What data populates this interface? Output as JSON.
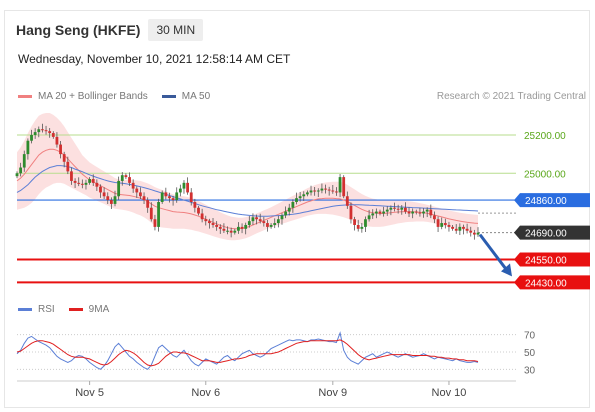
{
  "header": {
    "instrument": "Hang Seng (HKFE)",
    "timeframe": "30 MIN",
    "datetime": "Wednesday, November 10, 2021 12:58:14 AM CET"
  },
  "legend": {
    "ma20_bb": {
      "label": "MA 20 + Bollinger Bands",
      "color": "#f08080"
    },
    "ma50": {
      "label": "MA 50",
      "color": "#3a5a9a"
    },
    "credit": "Research © 2021 Trading Central"
  },
  "rsi_legend": {
    "rsi": {
      "label": "RSI",
      "color": "#5b7fd6"
    },
    "ma9": {
      "label": "9MA",
      "color": "#e02020"
    }
  },
  "chart_data": {
    "type": "candlestick",
    "price_range": [
      24430,
      25300
    ],
    "x_ticks": [
      {
        "label": "Nov 5",
        "index": 20
      },
      {
        "label": "Nov 6",
        "index": 52
      },
      {
        "label": "Nov 9",
        "index": 87
      },
      {
        "label": "Nov 10",
        "index": 119
      }
    ],
    "levels": [
      {
        "label": "25200.00",
        "value": 25200,
        "kind": "resistance_minor",
        "color": "#7dc13c"
      },
      {
        "label": "25000.00",
        "value": 25000,
        "kind": "resistance_minor",
        "color": "#7dc13c"
      },
      {
        "label": "24860.00",
        "value": 24860,
        "kind": "pivot",
        "color": "#2a6de0"
      },
      {
        "label": "24690.00",
        "value": 24690,
        "kind": "last_price",
        "color": "#333333"
      },
      {
        "label": "24550.00",
        "value": 24550,
        "kind": "support",
        "color": "#e81010"
      },
      {
        "label": "24430.00",
        "value": 24430,
        "kind": "support",
        "color": "#e81010"
      }
    ],
    "candles": {
      "count": 128,
      "close": [
        25000,
        25030,
        25100,
        25170,
        25200,
        25215,
        25230,
        25225,
        25220,
        25210,
        25190,
        25150,
        25100,
        25060,
        25010,
        24960,
        24950,
        24945,
        24940,
        24950,
        24970,
        24950,
        24930,
        24900,
        24880,
        24860,
        24840,
        24880,
        24960,
        24990,
        24980,
        24950,
        24920,
        24900,
        24880,
        24860,
        24820,
        24760,
        24720,
        24850,
        24900,
        24880,
        24870,
        24860,
        24900,
        24920,
        24950,
        24900,
        24850,
        24820,
        24790,
        24760,
        24750,
        24740,
        24730,
        24720,
        24710,
        24700,
        24700,
        24690,
        24700,
        24720,
        24710,
        24730,
        24750,
        24770,
        24760,
        24750,
        24740,
        24720,
        24730,
        24740,
        24760,
        24780,
        24800,
        24820,
        24850,
        24870,
        24880,
        24890,
        24900,
        24910,
        24905,
        24910,
        24920,
        24915,
        24910,
        24905,
        24900,
        24980,
        24880,
        24830,
        24760,
        24730,
        24710,
        24720,
        24760,
        24780,
        24790,
        24800,
        24790,
        24800,
        24810,
        24820,
        24815,
        24810,
        24820,
        24800,
        24790,
        24800,
        24795,
        24790,
        24800,
        24810,
        24780,
        24760,
        24720,
        24740,
        24730,
        24720,
        24710,
        24700,
        24720,
        24710,
        24700,
        24690,
        24680,
        24690
      ],
      "high_offset": 25,
      "low_offset": 25
    },
    "ma20": [
      24960,
      24975,
      24995,
      25020,
      25045,
      25070,
      25095,
      25110,
      25120,
      25125,
      25125,
      25120,
      25110,
      25095,
      25075,
      25055,
      25035,
      25015,
      24995,
      24980,
      24965,
      24955,
      24945,
      24935,
      24925,
      24915,
      24905,
      24895,
      24890,
      24888,
      24886,
      24884,
      24880,
      24875,
      24870,
      24862,
      24852,
      24840,
      24828,
      24820,
      24815,
      24810,
      24805,
      24800,
      24798,
      24796,
      24795,
      24792,
      24788,
      24782,
      24776,
      24768,
      24760,
      24752,
      24744,
      24736,
      24728,
      24722,
      24716,
      24712,
      24710,
      24710,
      24712,
      24716,
      24722,
      24730,
      24738,
      24746,
      24754,
      24762,
      24770,
      24778,
      24786,
      24794,
      24802,
      24810,
      24818,
      24826,
      24834,
      24842,
      24850,
      24856,
      24862,
      24866,
      24868,
      24870,
      24870,
      24870,
      24868,
      24866,
      24860,
      24852,
      24842,
      24832,
      24822,
      24812,
      24804,
      24798,
      24794,
      24792,
      24790,
      24790,
      24792,
      24794,
      24796,
      24798,
      24799,
      24800,
      24800,
      24799,
      24798,
      24796,
      24794,
      24791,
      24787,
      24782,
      24777,
      24772,
      24767,
      24762,
      24758,
      24754,
      24750,
      24747,
      24744,
      24742,
      24740,
      24738
    ],
    "ma50": [
      24900,
      24910,
      24925,
      24940,
      24960,
      24980,
      24995,
      25010,
      25020,
      25030,
      25035,
      25040,
      25040,
      25038,
      25035,
      25030,
      25022,
      25015,
      25008,
      25000,
      24992,
      24985,
      24978,
      24972,
      24966,
      24960,
      24956,
      24952,
      24950,
      24948,
      24945,
      24942,
      24938,
      24934,
      24930,
      24925,
      24920,
      24914,
      24908,
      24902,
      24896,
      24890,
      24884,
      24878,
      24872,
      24866,
      24860,
      24854,
      24848,
      24842,
      24836,
      24830,
      24825,
      24820,
      24815,
      24810,
      24806,
      24802,
      24798,
      24794,
      24790,
      24787,
      24784,
      24782,
      24780,
      24778,
      24777,
      24776,
      24776,
      24776,
      24777,
      24778,
      24779,
      24780,
      24782,
      24784,
      24786,
      24789,
      24792,
      24796,
      24800,
      24804,
      24808,
      24812,
      24816,
      24820,
      24824,
      24828,
      24830,
      24832,
      24834,
      24835,
      24836,
      24836,
      24836,
      24835,
      24834,
      24833,
      24832,
      24831,
      24830,
      24829,
      24828,
      24827,
      24826,
      24825,
      24824,
      24823,
      24822,
      24821,
      24820,
      24819,
      24818,
      24817,
      24816,
      24815,
      24814,
      24813,
      24812,
      24811,
      24810,
      24809,
      24808,
      24807,
      24806,
      24805,
      24804,
      24803
    ],
    "bb_width": [
      150,
      160,
      175,
      190,
      200,
      205,
      205,
      200,
      195,
      190,
      180,
      170,
      160,
      150,
      140,
      130,
      120,
      110,
      100,
      95,
      92,
      90,
      88,
      86,
      85,
      84,
      82,
      80,
      78,
      78,
      80,
      82,
      85,
      88,
      90,
      92,
      95,
      98,
      100,
      100,
      98,
      95,
      92,
      90,
      88,
      86,
      85,
      84,
      83,
      82,
      80,
      78,
      76,
      74,
      72,
      70,
      68,
      66,
      64,
      62,
      60,
      58,
      56,
      55,
      54,
      53,
      52,
      52,
      52,
      52,
      53,
      54,
      56,
      58,
      60,
      62,
      64,
      66,
      68,
      70,
      72,
      74,
      76,
      78,
      80,
      82,
      84,
      86,
      88,
      90,
      90,
      88,
      86,
      84,
      82,
      80,
      78,
      76,
      74,
      72,
      70,
      68,
      66,
      64,
      62,
      60,
      58,
      56,
      54,
      52,
      50,
      48,
      46,
      45,
      44,
      44,
      44,
      44,
      44,
      44,
      44,
      44,
      44,
      44,
      44,
      44,
      44,
      44
    ],
    "rsi": {
      "axis_ticks": [
        "70",
        "50",
        "30"
      ],
      "range": [
        20,
        80
      ],
      "rsi_values": [
        48,
        52,
        60,
        66,
        68,
        65,
        62,
        60,
        58,
        55,
        50,
        45,
        42,
        40,
        38,
        40,
        44,
        46,
        45,
        42,
        38,
        35,
        32,
        30,
        34,
        40,
        48,
        56,
        60,
        55,
        50,
        45,
        42,
        38,
        35,
        32,
        30,
        35,
        45,
        55,
        58,
        54,
        50,
        46,
        44,
        48,
        52,
        46,
        40,
        36,
        34,
        38,
        42,
        40,
        38,
        36,
        40,
        44,
        46,
        42,
        40,
        44,
        48,
        50,
        52,
        48,
        46,
        44,
        46,
        50,
        54,
        56,
        58,
        60,
        62,
        64,
        63,
        64,
        64,
        63,
        62,
        64,
        64,
        65,
        64,
        63,
        62,
        62,
        61,
        72,
        52,
        44,
        40,
        38,
        36,
        40,
        44,
        46,
        48,
        44,
        46,
        48,
        50,
        48,
        46,
        44,
        46,
        48,
        46,
        44,
        45,
        46,
        48,
        46,
        44,
        42,
        44,
        43,
        42,
        41,
        40,
        42,
        40,
        39,
        38,
        38,
        39,
        38
      ],
      "ma9_values": [
        50,
        51,
        54,
        57,
        60,
        62,
        63,
        63,
        62,
        61,
        59,
        56,
        53,
        50,
        47,
        45,
        44,
        44,
        44,
        43,
        42,
        40,
        38,
        36,
        35,
        36,
        39,
        43,
        47,
        50,
        52,
        51,
        49,
        46,
        42,
        38,
        35,
        34,
        35,
        37,
        41,
        45,
        48,
        50,
        50,
        49,
        49,
        48,
        46,
        44,
        42,
        40,
        40,
        40,
        39,
        38,
        38,
        39,
        40,
        41,
        42,
        42,
        43,
        44,
        46,
        47,
        48,
        48,
        48,
        48,
        48,
        49,
        50,
        52,
        54,
        56,
        58,
        60,
        61,
        62,
        62,
        63,
        63,
        63,
        63,
        63,
        63,
        63,
        63,
        64,
        62,
        59,
        55,
        51,
        47,
        44,
        42,
        41,
        42,
        43,
        44,
        45,
        46,
        47,
        47,
        47,
        47,
        47,
        47,
        46,
        46,
        46,
        46,
        46,
        45,
        45,
        44,
        44,
        43,
        43,
        42,
        42,
        41,
        41,
        40,
        40,
        40,
        39
      ]
    }
  }
}
